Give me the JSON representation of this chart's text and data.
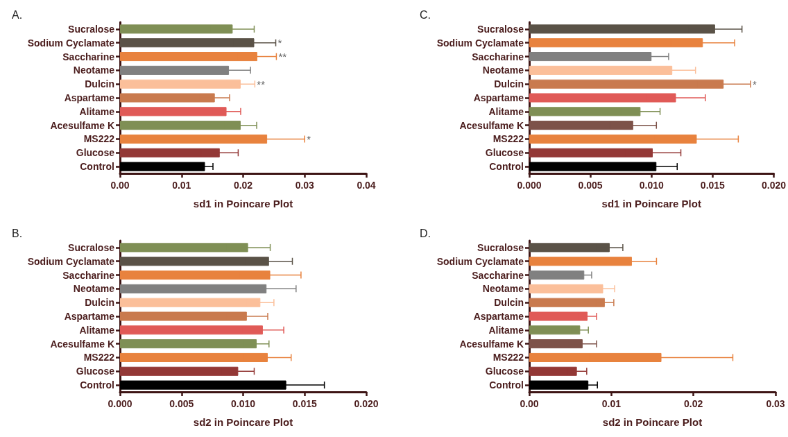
{
  "chart_data": [
    {
      "type": "bar",
      "orientation": "horizontal",
      "title": "A.",
      "xlabel": "sd1 in Poincare Plot",
      "categories": [
        "Sucralose",
        "Sodium Cyclamate",
        "Saccharine",
        "Neotame",
        "Dulcin",
        "Aspartame",
        "Alitame",
        "Acesulfame K",
        "MS222",
        "Glucose",
        "Control"
      ],
      "values": [
        0.0183,
        0.0218,
        0.0223,
        0.0177,
        0.0196,
        0.0154,
        0.0173,
        0.0196,
        0.0239,
        0.0162,
        0.0138
      ],
      "errors": [
        0.0035,
        0.0035,
        0.0031,
        0.0035,
        0.0023,
        0.0024,
        0.0023,
        0.0026,
        0.0061,
        0.003,
        0.0013
      ],
      "colors": [
        "#7f8f55",
        "#5a5247",
        "#e8823e",
        "#808080",
        "#fbbf9a",
        "#c97a4e",
        "#e05a57",
        "#7f8f55",
        "#e8823e",
        "#933836",
        "#000000"
      ],
      "xlim": [
        0,
        0.04
      ],
      "xticks": [
        {
          "value": 0,
          "label": "0.00"
        },
        {
          "value": 0.01,
          "label": "0.01"
        },
        {
          "value": 0.02,
          "label": "0.02"
        },
        {
          "value": 0.03,
          "label": "0.03"
        },
        {
          "value": 0.04,
          "label": "0.04"
        }
      ],
      "annotations": [
        {
          "text": "*",
          "x": 0.0253,
          "y": "Sodium Cyclamate"
        },
        {
          "text": "**",
          "x": 0.0254,
          "y": "Saccharine"
        },
        {
          "text": "**",
          "x": 0.0219,
          "y": "Dulcin"
        },
        {
          "text": "*",
          "x": 0.03,
          "y": "MS222"
        }
      ]
    },
    {
      "type": "bar",
      "orientation": "horizontal",
      "title": "C.",
      "xlabel": "sd1 in Poincare Plot",
      "categories": [
        "Sucralose",
        "Sodium Cyclamate",
        "Saccharine",
        "Neotame",
        "Dulcin",
        "Aspartame",
        "Alitame",
        "Acesulfame K",
        "MS222",
        "Glucose",
        "Control"
      ],
      "values": [
        0.0152,
        0.0142,
        0.01,
        0.0117,
        0.0159,
        0.012,
        0.0091,
        0.0085,
        0.0137,
        0.0101,
        0.0104
      ],
      "errors": [
        0.0022,
        0.0026,
        0.0014,
        0.0019,
        0.0022,
        0.0024,
        0.0016,
        0.0019,
        0.0034,
        0.0023,
        0.0017
      ],
      "colors": [
        "#5a5247",
        "#e8823e",
        "#808080",
        "#fbbf9a",
        "#c97a4e",
        "#e05a57",
        "#7f8f55",
        "#7d5249",
        "#e8823e",
        "#933836",
        "#000000"
      ],
      "xlim": [
        0,
        0.02
      ],
      "xticks": [
        {
          "value": 0,
          "label": "0.000"
        },
        {
          "value": 0.005,
          "label": "0.005"
        },
        {
          "value": 0.01,
          "label": "0.010"
        },
        {
          "value": 0.015,
          "label": "0.015"
        },
        {
          "value": 0.02,
          "label": "0.020"
        }
      ],
      "annotations": [
        {
          "text": "*",
          "x": 0.0181,
          "y": "Dulcin"
        }
      ]
    },
    {
      "type": "bar",
      "orientation": "horizontal",
      "title": "B.",
      "xlabel": "sd2 in Poincare Plot",
      "categories": [
        "Sucralose",
        "Sodium Cyclamate",
        "Saccharine",
        "Neotame",
        "Dulcin",
        "Aspartame",
        "Alitame",
        "Acesulfame K",
        "MS222",
        "Glucose",
        "Control"
      ],
      "values": [
        0.0104,
        0.0121,
        0.0122,
        0.0119,
        0.0114,
        0.0103,
        0.0116,
        0.0111,
        0.012,
        0.0096,
        0.0135
      ],
      "errors": [
        0.0018,
        0.0019,
        0.0025,
        0.0024,
        0.0011,
        0.0017,
        0.0017,
        0.001,
        0.0019,
        0.0013,
        0.0031
      ],
      "colors": [
        "#7f8f55",
        "#5a5247",
        "#e8823e",
        "#808080",
        "#fbbf9a",
        "#c97a4e",
        "#e05a57",
        "#7f8f55",
        "#e8823e",
        "#933836",
        "#000000"
      ],
      "xlim": [
        0,
        0.02
      ],
      "xticks": [
        {
          "value": 0,
          "label": "0.000"
        },
        {
          "value": 0.005,
          "label": "0.005"
        },
        {
          "value": 0.01,
          "label": "0.010"
        },
        {
          "value": 0.015,
          "label": "0.015"
        },
        {
          "value": 0.02,
          "label": "0.020"
        }
      ]
    },
    {
      "type": "bar",
      "orientation": "horizontal",
      "title": "D.",
      "xlabel": "sd2 in Poincare Plot",
      "categories": [
        "Sucralose",
        "Sodium Cyclamate",
        "Saccharine",
        "Neotame",
        "Dulcin",
        "Aspartame",
        "Alitame",
        "Acesulfame K",
        "MS222",
        "Glucose",
        "Control"
      ],
      "values": [
        0.0098,
        0.0125,
        0.0067,
        0.009,
        0.0092,
        0.0071,
        0.0062,
        0.0065,
        0.0161,
        0.0058,
        0.0072
      ],
      "errors": [
        0.0016,
        0.003,
        0.0009,
        0.0014,
        0.0011,
        0.0011,
        0.001,
        0.0017,
        0.0087,
        0.0012,
        0.0011
      ],
      "colors": [
        "#5a5247",
        "#e8823e",
        "#808080",
        "#fbbf9a",
        "#c97a4e",
        "#e05a57",
        "#7f8f55",
        "#7d5249",
        "#e8823e",
        "#933836",
        "#000000"
      ],
      "xlim": [
        0,
        0.03
      ],
      "xticks": [
        {
          "value": 0,
          "label": "0.00"
        },
        {
          "value": 0.01,
          "label": "0.01"
        },
        {
          "value": 0.02,
          "label": "0.02"
        },
        {
          "value": 0.03,
          "label": "0.03"
        }
      ]
    }
  ]
}
